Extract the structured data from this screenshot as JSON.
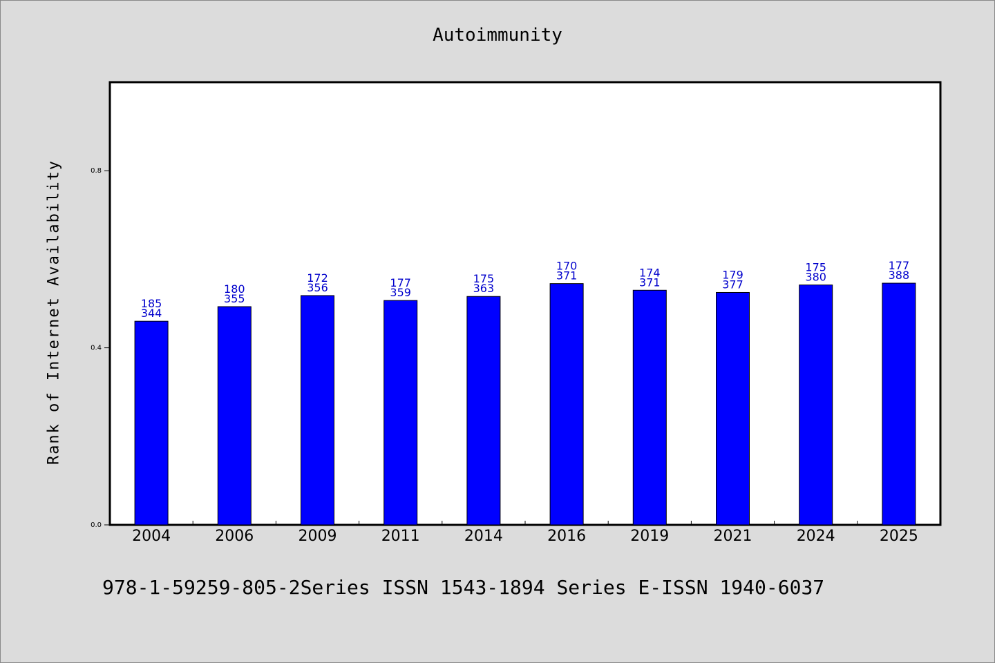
{
  "page": {
    "footer": "978-1-59259-805-2Series ISSN 1543-1894 Series E-ISSN 1940-6037"
  },
  "chart_data": {
    "type": "bar",
    "title": "Autoimmunity",
    "xlabel": "",
    "ylabel": "Rank of Internet Availability",
    "ylim": [
      0,
      1.0
    ],
    "yticks": [
      0.0,
      0.4,
      0.8
    ],
    "ytick_labels": [
      "0.0",
      "0.4",
      "0.8"
    ],
    "grid": false,
    "categories": [
      "2004",
      "2006",
      "2009",
      "2011",
      "2014",
      "2016",
      "2019",
      "2021",
      "2024",
      "2025"
    ],
    "values": [
      0.46,
      0.493,
      0.518,
      0.507,
      0.516,
      0.545,
      0.53,
      0.525,
      0.542,
      0.546
    ],
    "label_top": [
      "185",
      "180",
      "172",
      "177",
      "175",
      "170",
      "174",
      "179",
      "175",
      "177"
    ],
    "label_bottom": [
      "344",
      "355",
      "356",
      "359",
      "363",
      "371",
      "371",
      "377",
      "380",
      "388"
    ],
    "bar_color": "#0000ff",
    "label_color": "#0000cc"
  }
}
